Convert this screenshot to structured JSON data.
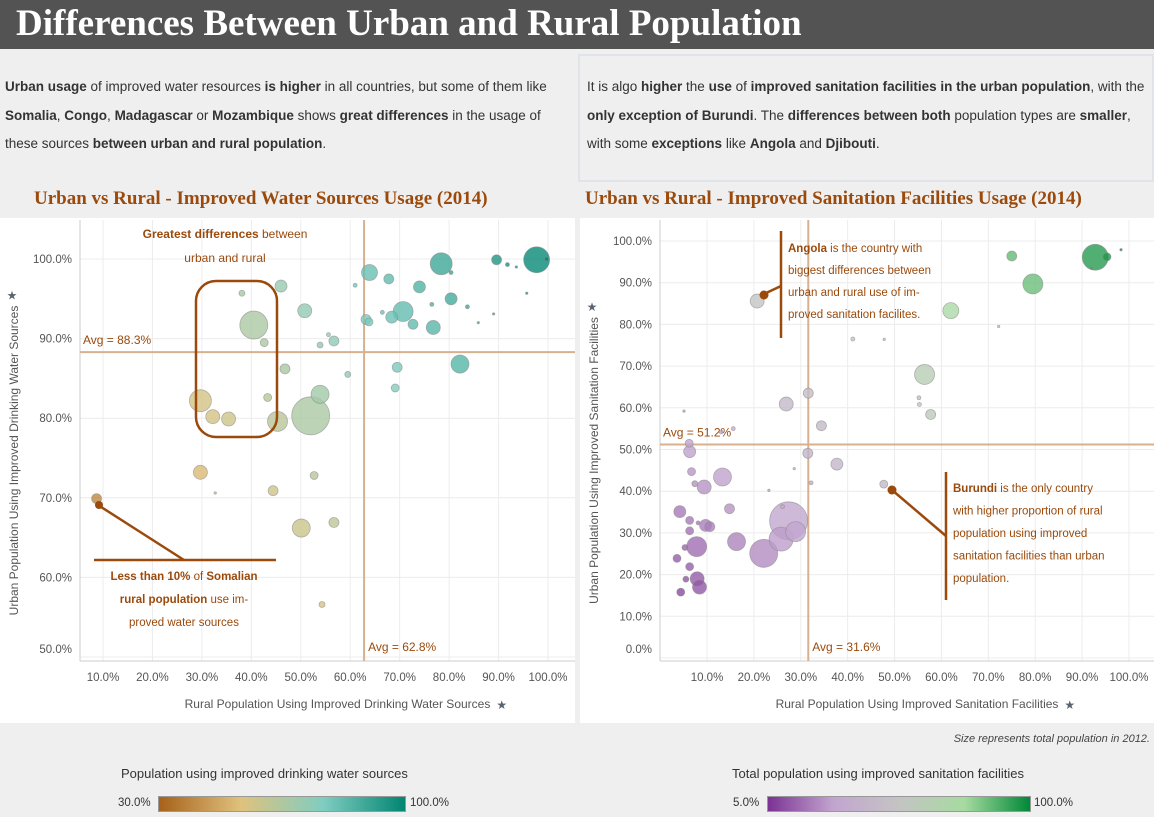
{
  "title": "Differences Between Urban and Rural Population",
  "text_left": [
    [
      "Urban usage",
      1
    ],
    [
      " of improved water resources ",
      0
    ],
    [
      "is higher",
      1
    ],
    [
      " in all countries, but some of them like ",
      0
    ],
    [
      "Somalia",
      1
    ],
    [
      ", ",
      0
    ],
    [
      "Congo",
      1
    ],
    [
      ", ",
      0
    ],
    [
      "Madagascar",
      1
    ],
    [
      " or ",
      0
    ],
    [
      "Mozambique",
      1
    ],
    [
      " shows ",
      0
    ],
    [
      "great differences",
      1
    ],
    [
      " in the usage of these sources ",
      0
    ],
    [
      "between urban and rural population",
      1
    ],
    [
      ".",
      0
    ]
  ],
  "text_right": [
    [
      "It is algo ",
      0
    ],
    [
      "higher",
      1
    ],
    [
      " the ",
      0
    ],
    [
      "use",
      1
    ],
    [
      " of ",
      0
    ],
    [
      "improved sanitation facilities in the urban population",
      1
    ],
    [
      ", with the ",
      0
    ],
    [
      "only exception of Burundi",
      1
    ],
    [
      ". The ",
      0
    ],
    [
      "differences between both",
      1
    ],
    [
      " population types are ",
      0
    ],
    [
      "smaller",
      1
    ],
    [
      ", with some ",
      0
    ],
    [
      "exceptions",
      1
    ],
    [
      " like ",
      0
    ],
    [
      "Angola",
      1
    ],
    [
      " and ",
      0
    ],
    [
      "Djibouti",
      1
    ],
    [
      ".",
      0
    ]
  ],
  "size_note": "Size represents total population in 2012.",
  "chart_data": [
    {
      "type": "scatter",
      "title": "Urban vs Rural - Improved Water Sources Usage (2014)",
      "xlabel": "Rural Population Using Improved Drinking Water Sources",
      "ylabel": "Urban Population Using Improved Drinking Water Sources",
      "xlim": [
        5,
        100
      ],
      "ylim": [
        50,
        100
      ],
      "xticks": [
        "10.0%",
        "20.0%",
        "30.0%",
        "40.0%",
        "50.0%",
        "60.0%",
        "70.0%",
        "80.0%",
        "90.0%",
        "100.0%"
      ],
      "yticks": [
        "50.0%",
        "60.0%",
        "70.0%",
        "80.0%",
        "90.0%",
        "100.0%"
      ],
      "avg_x": 62.8,
      "avg_y": 88.3,
      "avg_x_label": "Avg = 62.8%",
      "avg_y_label": "Avg = 88.3%",
      "grid": true,
      "color_legend": {
        "title": "Population using improved drinking water sources",
        "min": "30.0%",
        "max": "100.0%",
        "colors": [
          "#a6611a",
          "#dfc27d",
          "#80cdc1",
          "#018571"
        ]
      },
      "points": [
        [
          8.7,
          69.9,
          25
        ],
        [
          29.7,
          82.2,
          121
        ],
        [
          32.2,
          80.2,
          49
        ],
        [
          35.4,
          79.9,
          49
        ],
        [
          40.5,
          91.7,
          196
        ],
        [
          38.1,
          95.7,
          9
        ],
        [
          42.6,
          89.5,
          16
        ],
        [
          43.3,
          82.6,
          16
        ],
        [
          46,
          96.6,
          36
        ],
        [
          45.3,
          79.6,
          100
        ],
        [
          46.8,
          86.2,
          25
        ],
        [
          52,
          80.3,
          361
        ],
        [
          53.9,
          83,
          81
        ],
        [
          50.8,
          93.5,
          49
        ],
        [
          55.6,
          90.5,
          4
        ],
        [
          53.9,
          89.2,
          9
        ],
        [
          56.7,
          89.7,
          25
        ],
        [
          59.5,
          85.5,
          9
        ],
        [
          61,
          96.7,
          4
        ],
        [
          63.9,
          98.3,
          64
        ],
        [
          63.2,
          92.4,
          25
        ],
        [
          63.8,
          92.1,
          16
        ],
        [
          66.5,
          93.3,
          4
        ],
        [
          67.8,
          97.5,
          25
        ],
        [
          68.4,
          92.7,
          36
        ],
        [
          70.7,
          93.4,
          100
        ],
        [
          72.7,
          91.8,
          25
        ],
        [
          74,
          96.5,
          36
        ],
        [
          76.5,
          94.3,
          4
        ],
        [
          76.8,
          91.4,
          49
        ],
        [
          78.4,
          99.4,
          121
        ],
        [
          80.4,
          98.3,
          4
        ],
        [
          80.4,
          95,
          36
        ],
        [
          83.7,
          94,
          4
        ],
        [
          82.2,
          86.8,
          81
        ],
        [
          69.5,
          86.4,
          25
        ],
        [
          69.1,
          83.8,
          16
        ],
        [
          85.9,
          92,
          1
        ],
        [
          89,
          93.1,
          1
        ],
        [
          89.6,
          99.9,
          25
        ],
        [
          91.8,
          99.3,
          4
        ],
        [
          93.6,
          99,
          1
        ],
        [
          95.7,
          95.7,
          1
        ],
        [
          97.7,
          99.9,
          169
        ],
        [
          99.7,
          100,
          4
        ],
        [
          29.7,
          73.2,
          49
        ],
        [
          32.7,
          70.6,
          1
        ],
        [
          44.4,
          70.9,
          25
        ],
        [
          52.7,
          72.8,
          16
        ],
        [
          50.1,
          66.2,
          81
        ],
        [
          56.7,
          66.9,
          25
        ],
        [
          54.3,
          56.6,
          9
        ]
      ],
      "annotations": [
        {
          "id": "greatest",
          "lines": [
            [
              [
                "Greatest differences",
                1
              ],
              [
                " between",
                0
              ]
            ],
            [
              [
                "urban and rural",
                0
              ]
            ]
          ]
        },
        {
          "id": "somalia",
          "lines": [
            [
              [
                "Less than 10%",
                1
              ],
              [
                " of ",
                0
              ],
              [
                "Somalian",
                1
              ]
            ],
            [
              [
                "rural population",
                1
              ],
              [
                " use im-",
                0
              ]
            ],
            [
              [
                "proved water sources",
                0
              ]
            ]
          ]
        }
      ]
    },
    {
      "type": "scatter",
      "title": "Urban vs Rural - Improved Sanitation Facilities Usage (2014)",
      "xlabel": "Rural Population Using Improved Sanitation Facilities",
      "ylabel": "Urban Population Using Improved Sanitation Facilities",
      "xlim": [
        0,
        100
      ],
      "ylim": [
        0,
        100
      ],
      "xticks": [
        "10.0%",
        "20.0%",
        "30.0%",
        "40.0%",
        "50.0%",
        "60.0%",
        "70.0%",
        "80.0%",
        "90.0%",
        "100.0%"
      ],
      "yticks": [
        "0.0%",
        "10.0%",
        "20.0%",
        "30.0%",
        "40.0%",
        "50.0%",
        "60.0%",
        "70.0%",
        "80.0%",
        "90.0%",
        "100.0%"
      ],
      "avg_x": 31.6,
      "avg_y": 51.2,
      "avg_x_label": "Avg = 31.6%",
      "avg_y_label": "Avg = 51.2%",
      "grid": true,
      "color_legend": {
        "title": "Total population using improved sanitation facilities",
        "min": "5.0%",
        "max": "100.0%",
        "colors": [
          "#7b3294",
          "#c2a5cf",
          "#c4c4c4",
          "#a6dba0",
          "#008837"
        ]
      },
      "points": [
        [
          20.7,
          85.6,
          49
        ],
        [
          26.9,
          60.9,
          49
        ],
        [
          31.6,
          63.5,
          25
        ],
        [
          34.4,
          55.7,
          25
        ],
        [
          31.5,
          49.1,
          25
        ],
        [
          37.7,
          46.5,
          36
        ],
        [
          47.7,
          41.7,
          16
        ],
        [
          28.6,
          45.4,
          1
        ],
        [
          32.2,
          42,
          4
        ],
        [
          23.2,
          40.2,
          1
        ],
        [
          5.1,
          59.2,
          1
        ],
        [
          13,
          54.2,
          4
        ],
        [
          15.6,
          55,
          4
        ],
        [
          6.2,
          51.5,
          16
        ],
        [
          6.3,
          49.5,
          36
        ],
        [
          6.7,
          44.7,
          16
        ],
        [
          7.4,
          41.8,
          9
        ],
        [
          9.4,
          41,
          49
        ],
        [
          13.3,
          43.4,
          81
        ],
        [
          4.2,
          35.1,
          36
        ],
        [
          14.8,
          35.8,
          25
        ],
        [
          6.3,
          33,
          16
        ],
        [
          8.1,
          32.4,
          4
        ],
        [
          9.7,
          31.8,
          36
        ],
        [
          10.6,
          31.5,
          25
        ],
        [
          6.3,
          30.5,
          16
        ],
        [
          7.8,
          26.7,
          100
        ],
        [
          5.3,
          26.5,
          9
        ],
        [
          3.6,
          23.9,
          16
        ],
        [
          6.3,
          21.9,
          16
        ],
        [
          5.5,
          18.9,
          9
        ],
        [
          4.4,
          15.8,
          16
        ],
        [
          7.9,
          19,
          49
        ],
        [
          8.4,
          17,
          49
        ],
        [
          16.3,
          27.9,
          81
        ],
        [
          22.1,
          25.1,
          196
        ],
        [
          25.8,
          28.5,
          144
        ],
        [
          28.9,
          30.3,
          100
        ],
        [
          27.4,
          32.9,
          361
        ],
        [
          26.1,
          36.3,
          4
        ],
        [
          41.1,
          76.5,
          4
        ],
        [
          47.8,
          76.4,
          1
        ],
        [
          56.4,
          68,
          100
        ],
        [
          55.2,
          62.4,
          4
        ],
        [
          55.3,
          60.8,
          4
        ],
        [
          57.7,
          58.4,
          25
        ],
        [
          62,
          83.3,
          64
        ],
        [
          72.2,
          79.5,
          1
        ],
        [
          75,
          96.4,
          25
        ],
        [
          79.5,
          89.7,
          100
        ],
        [
          92.8,
          96.1,
          169
        ],
        [
          95.3,
          96.2,
          16
        ],
        [
          92,
          93.5,
          1
        ],
        [
          98.3,
          97.9,
          1
        ]
      ],
      "annotations": [
        {
          "id": "angola",
          "lines": [
            [
              [
                "Angola",
                1
              ],
              [
                " is the country with",
                0
              ]
            ],
            [
              [
                "biggest differences between",
                0
              ]
            ],
            [
              [
                "urban and rural use of im-",
                0
              ]
            ],
            [
              [
                "proved sanitation facilites.",
                0
              ]
            ]
          ]
        },
        {
          "id": "burundi",
          "lines": [
            [
              [
                "Burundi",
                1
              ],
              [
                " is the only country",
                0
              ]
            ],
            [
              [
                "with higher proportion of rural",
                0
              ]
            ],
            [
              [
                "population using improved",
                0
              ]
            ],
            [
              [
                "sanitation facilities than urban",
                0
              ]
            ],
            [
              [
                "population.",
                0
              ]
            ]
          ]
        }
      ]
    }
  ],
  "accent": "#9b4a0c"
}
